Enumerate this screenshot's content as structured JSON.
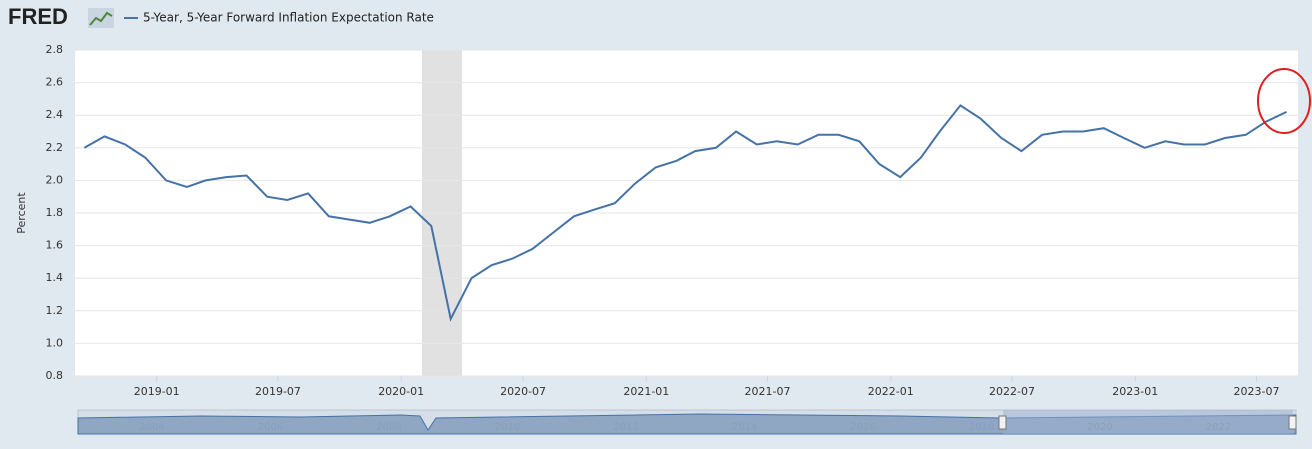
{
  "chart_data": {
    "type": "line",
    "logo": "FRED",
    "ylabel": "Percent",
    "x": [
      "2018-09",
      "2018-10",
      "2018-11",
      "2018-12",
      "2019-01",
      "2019-02",
      "2019-03",
      "2019-04",
      "2019-05",
      "2019-06",
      "2019-07",
      "2019-08",
      "2019-09",
      "2019-10",
      "2019-11",
      "2019-12",
      "2020-01",
      "2020-02",
      "2020-03",
      "2020-04",
      "2020-05",
      "2020-06",
      "2020-07",
      "2020-08",
      "2020-09",
      "2020-10",
      "2020-11",
      "2020-12",
      "2021-01",
      "2021-02",
      "2021-03",
      "2021-04",
      "2021-05",
      "2021-06",
      "2021-07",
      "2021-08",
      "2021-09",
      "2021-10",
      "2021-11",
      "2021-12",
      "2022-01",
      "2022-02",
      "2022-03",
      "2022-04",
      "2022-05",
      "2022-06",
      "2022-07",
      "2022-08",
      "2022-09",
      "2022-10",
      "2022-11",
      "2022-12",
      "2023-01",
      "2023-02",
      "2023-03",
      "2023-04",
      "2023-05",
      "2023-06",
      "2023-07",
      "2023-08"
    ],
    "series": [
      {
        "name": "5-Year, 5-Year Forward Inflation Expectation Rate",
        "color": "#4572a7",
        "values": [
          2.2,
          2.27,
          2.22,
          2.14,
          2.0,
          1.96,
          2.0,
          2.02,
          2.03,
          1.9,
          1.88,
          1.92,
          1.78,
          1.76,
          1.74,
          1.78,
          1.84,
          1.72,
          1.15,
          1.4,
          1.48,
          1.52,
          1.58,
          1.68,
          1.78,
          1.82,
          1.86,
          1.98,
          2.08,
          2.12,
          2.18,
          2.2,
          2.3,
          2.22,
          2.24,
          2.22,
          2.28,
          2.28,
          2.24,
          2.1,
          2.02,
          2.14,
          2.3,
          2.46,
          2.38,
          2.26,
          2.18,
          2.28,
          2.3,
          2.3,
          2.32,
          2.26,
          2.2,
          2.24,
          2.22,
          2.22,
          2.26,
          2.28,
          2.36,
          2.42
        ]
      }
    ],
    "xlim": [
      "2018-09",
      "2023-09"
    ],
    "xticks": [
      "2019-01",
      "2019-07",
      "2020-01",
      "2020-07",
      "2021-01",
      "2021-07",
      "2022-01",
      "2022-07",
      "2023-01",
      "2023-07"
    ],
    "ylim": [
      0.8,
      2.8
    ],
    "yticks": [
      0.8,
      {
        "value": 1,
        "label": "1.0"
      },
      1.2,
      1.4,
      1.6,
      1.8,
      {
        "value": 2,
        "label": "2.0"
      },
      2.2,
      2.4,
      2.6,
      2.8
    ],
    "grid": true,
    "shaded_periods": [
      [
        "2020-02",
        "2020-04"
      ]
    ],
    "navigator_labels": [
      "2004",
      "2006",
      "2008",
      "2010",
      "2012",
      "2014",
      "2016",
      "2018",
      "2020",
      "2022"
    ]
  }
}
